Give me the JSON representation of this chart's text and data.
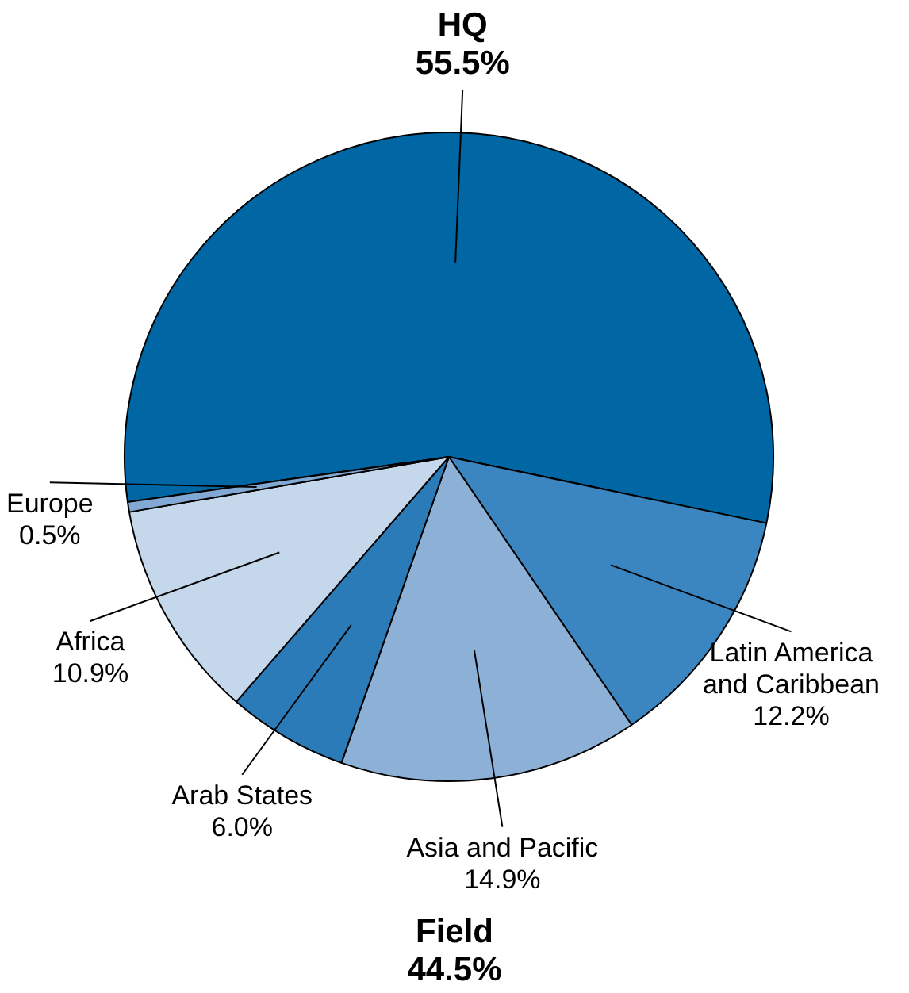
{
  "chart_data": {
    "type": "pie",
    "categories": [
      "HQ",
      "Latin America and Caribbean",
      "Asia and Pacific",
      "Arab States",
      "Africa",
      "Europe"
    ],
    "values": [
      55.5,
      12.2,
      14.9,
      6.0,
      10.9,
      0.5
    ],
    "value_labels": [
      "55.5%",
      "12.2%",
      "14.9%",
      "6.0%",
      "10.9%",
      "0.5%"
    ],
    "colors": [
      "#0066a4",
      "#3b86c0",
      "#8db0d7",
      "#2b7bb9",
      "#c5d7eb",
      "#82a9d4"
    ],
    "annotations": [
      "Field\n44.5%"
    ],
    "legend": false
  }
}
